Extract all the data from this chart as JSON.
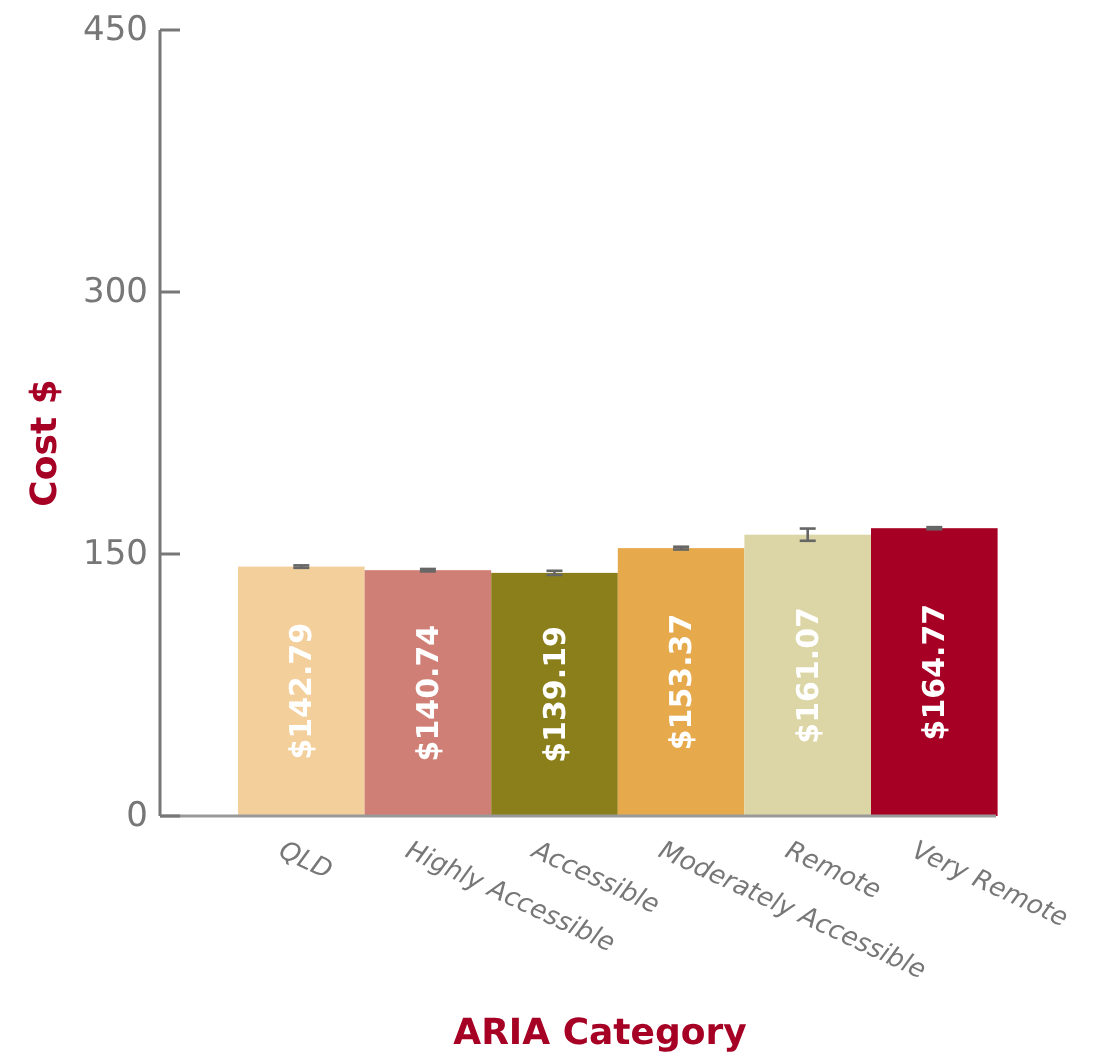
{
  "chart_data": {
    "type": "bar",
    "xlabel": "ARIA Category",
    "ylabel": "Cost $",
    "categories": [
      "QLD",
      "Highly Accessible",
      "Accessible",
      "Moderately Accessible",
      "Remote",
      "Very Remote"
    ],
    "values": [
      142.79,
      140.74,
      139.19,
      153.37,
      161.07,
      164.77
    ],
    "value_labels": [
      "$142.79",
      "$140.74",
      "$139.19",
      "$153.37",
      "$161.07",
      "$164.77"
    ],
    "colors": [
      "#f3cf9c",
      "#d07f76",
      "#8a7f1a",
      "#e6aa4d",
      "#dcd6a6",
      "#a60024"
    ],
    "errors": [
      0.7,
      0.7,
      1.2,
      0.8,
      3.5,
      0.6
    ],
    "ylim": [
      0,
      450
    ],
    "yticks": [
      0,
      150,
      300,
      450
    ],
    "grid": false
  }
}
